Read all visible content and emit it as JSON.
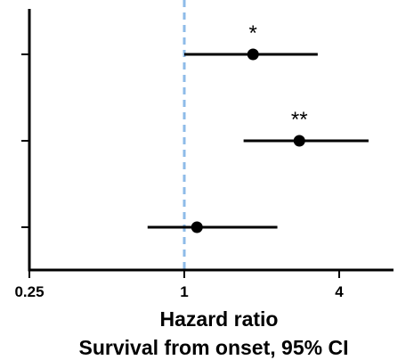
{
  "chart_data": {
    "type": "scatter",
    "subtype": "forest-plot",
    "x_scale": "log2",
    "xlim": [
      0.25,
      6.5
    ],
    "xticks": [
      0.25,
      1,
      4
    ],
    "xtick_labels": [
      "0.25",
      "1",
      "4"
    ],
    "xlabel": "Hazard ratio",
    "xlabel_sub": "Survival from onset, 95% CI",
    "reference_line": {
      "x": 1,
      "style": "dashed",
      "color": "#8ebbe8"
    },
    "rows": [
      {
        "estimate": 1.85,
        "ci_low": 1.0,
        "ci_high": 3.3,
        "significance": "*"
      },
      {
        "estimate": 2.8,
        "ci_low": 1.7,
        "ci_high": 5.2,
        "significance": "**"
      },
      {
        "estimate": 1.12,
        "ci_low": 0.72,
        "ci_high": 2.3,
        "significance": ""
      }
    ],
    "grid": false,
    "legend": "none"
  },
  "colors": {
    "axis": "#000000",
    "marker": "#000000",
    "ci_line": "#000000",
    "reference": "#8ebbe8"
  }
}
